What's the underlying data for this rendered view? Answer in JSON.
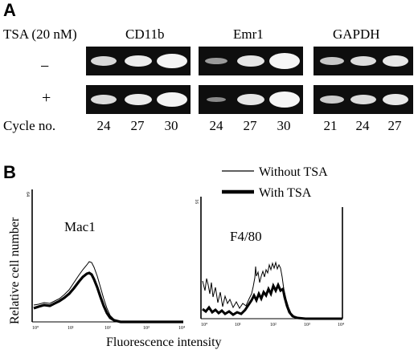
{
  "panel_a": {
    "letter": "A",
    "treatment_label": "TSA (20 nM)",
    "row_minus": "−",
    "row_plus": "+",
    "cycle_label": "Cycle no.",
    "genes": [
      {
        "name": "CD11b",
        "cycles": [
          "24",
          "27",
          "30"
        ]
      },
      {
        "name": "Emr1",
        "cycles": [
          "24",
          "27",
          "30"
        ]
      },
      {
        "name": "GAPDH",
        "cycles": [
          "21",
          "24",
          "27"
        ]
      }
    ]
  },
  "panel_b": {
    "letter": "B",
    "y_axis_label": "Relative cell number",
    "x_axis_label": "Fluorescence intensity",
    "legend": {
      "without": "Without TSA",
      "with": "With TSA"
    },
    "plots": [
      {
        "name": "Mac1",
        "y_max_tick": "64",
        "x_ticks": [
          "10°",
          "10¹",
          "10²",
          "10³",
          "10⁴"
        ]
      },
      {
        "name": "F4/80",
        "y_max_tick": "16",
        "x_ticks": [
          "10°",
          "10¹",
          "10²",
          "10³",
          "10⁴"
        ]
      }
    ]
  }
}
